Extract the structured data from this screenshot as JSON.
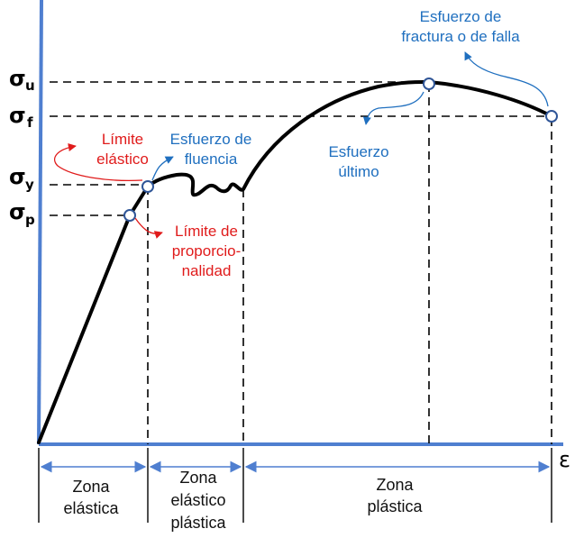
{
  "axes": {
    "y_levels": [
      {
        "symbol": "σ",
        "sub": "u"
      },
      {
        "symbol": "σ",
        "sub": "f"
      },
      {
        "symbol": "σ",
        "sub": "y"
      },
      {
        "symbol": "σ",
        "sub": "p"
      }
    ],
    "x_symbol": "ε"
  },
  "annotations": {
    "fracture": [
      "Esfuerzo de",
      "fractura o de falla"
    ],
    "ultimate": [
      "Esfuerzo",
      "último"
    ],
    "elastic_limit": [
      "Límite",
      "elástico"
    ],
    "yield": [
      "Esfuerzo de",
      "fluencia"
    ],
    "proportional_limit": [
      "Límite de",
      "proporcio-",
      "nalidad"
    ]
  },
  "zones": [
    [
      "Zona",
      "elástica"
    ],
    [
      "Zona",
      "elástico",
      "plástica"
    ],
    [
      "Zona",
      "plástica"
    ]
  ],
  "colors": {
    "axis": "#4f7fd0",
    "annotation_blue": "#1f6fbf",
    "annotation_red": "#e01b1b",
    "curve": "#000000"
  }
}
